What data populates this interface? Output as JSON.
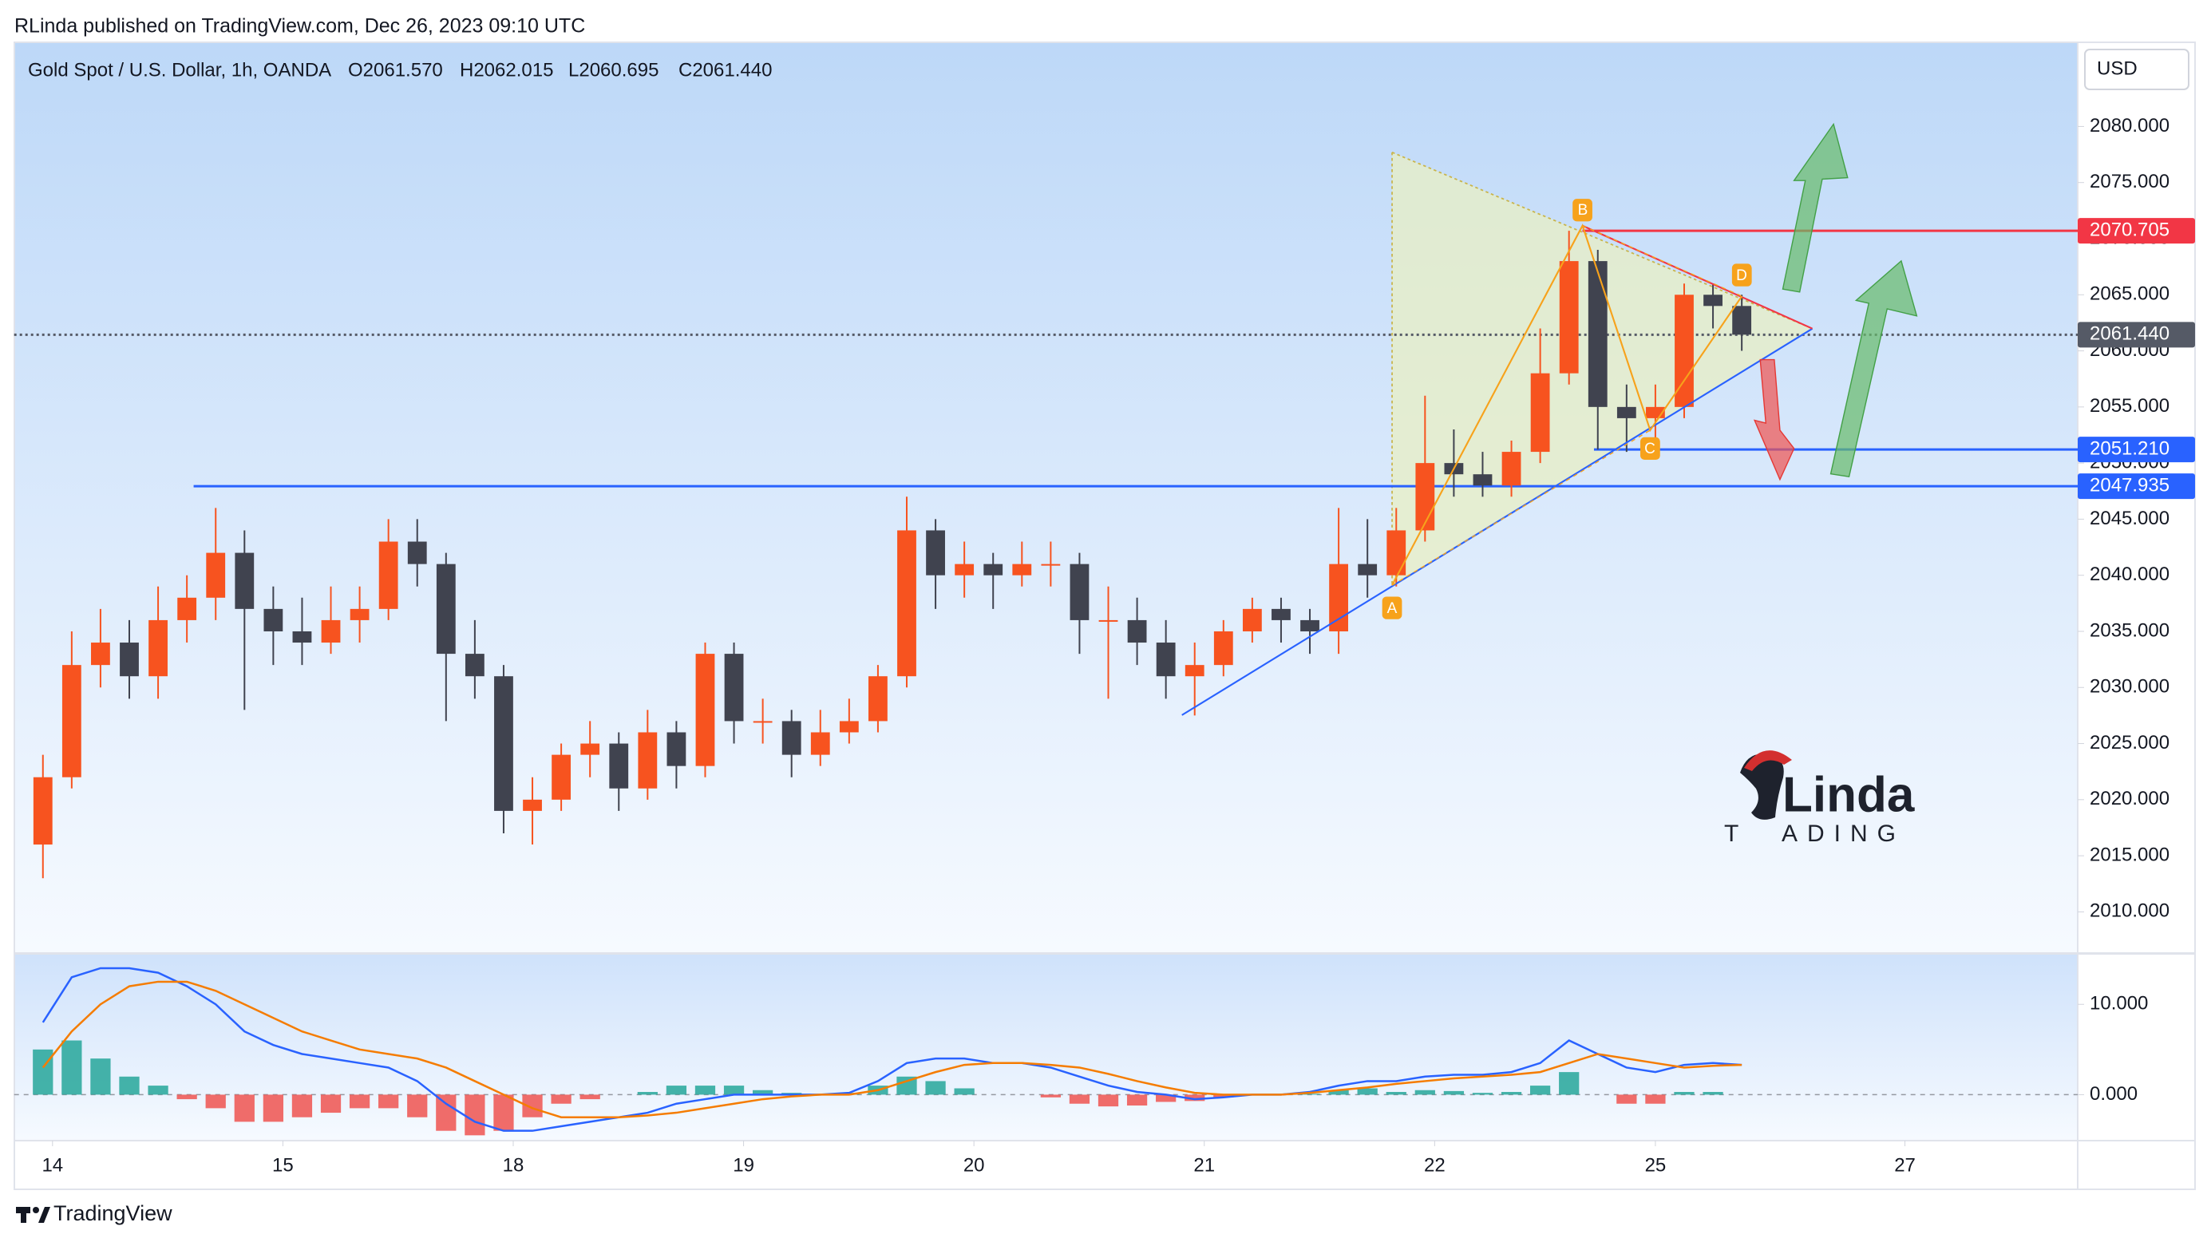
{
  "header": {
    "published": "RLinda published on TradingView.com, Dec 26, 2023 09:10 UTC",
    "symbol": "Gold Spot / U.S. Dollar, 1h, OANDA",
    "open": "O2061.570",
    "high": "H2062.015",
    "low": "L2060.695",
    "close": "C2061.440",
    "currency": "USD",
    "footer": "TradingView"
  },
  "logo": {
    "name": "Linda",
    "tag_start": "T",
    "tag_end": "ADING"
  },
  "annotations": {
    "points": [
      "A",
      "B",
      "C",
      "D"
    ]
  },
  "chart_data": [
    {
      "type": "candlestick",
      "up_color": "#f7531f",
      "down_color": "#40434f",
      "grid": false,
      "xlim": [
        -3,
        212
      ],
      "ylim": [
        2006.4,
        2087.5
      ],
      "xticks": [
        {
          "value": 1,
          "label": "14"
        },
        {
          "value": 25,
          "label": "15"
        },
        {
          "value": 49,
          "label": "18"
        },
        {
          "value": 73,
          "label": "19"
        },
        {
          "value": 97,
          "label": "20"
        },
        {
          "value": 121,
          "label": "21"
        },
        {
          "value": 145,
          "label": "22"
        },
        {
          "value": 168,
          "label": "25"
        },
        {
          "value": 194,
          "label": "27"
        }
      ],
      "yticks": [
        {
          "value": 2010,
          "label": "2010.000"
        },
        {
          "value": 2015,
          "label": "2015.000"
        },
        {
          "value": 2020,
          "label": "2020.000"
        },
        {
          "value": 2025,
          "label": "2025.000"
        },
        {
          "value": 2030,
          "label": "2030.000"
        },
        {
          "value": 2035,
          "label": "2035.000"
        },
        {
          "value": 2040,
          "label": "2040.000"
        },
        {
          "value": 2045,
          "label": "2045.000"
        },
        {
          "value": 2050,
          "label": "2050.000"
        },
        {
          "value": 2055,
          "label": "2055.000"
        },
        {
          "value": 2060,
          "label": "2060.000"
        },
        {
          "value": 2065,
          "label": "2065.000"
        },
        {
          "value": 2070,
          "label": "2070.000"
        },
        {
          "value": 2075,
          "label": "2075.000"
        },
        {
          "value": 2080,
          "label": "2080.000"
        }
      ],
      "x": [
        0,
        3,
        6,
        9,
        12,
        15,
        18,
        21,
        24,
        27,
        30,
        33,
        36,
        39,
        42,
        45,
        48,
        51,
        54,
        57,
        60,
        63,
        66,
        69,
        72,
        75,
        78,
        81,
        84,
        87,
        90,
        93,
        96,
        99,
        102,
        105,
        108,
        111,
        114,
        117,
        120,
        123,
        126,
        129,
        132,
        135,
        138,
        141,
        144,
        147,
        150,
        153,
        156,
        159,
        162,
        165,
        168,
        171,
        174,
        177
      ],
      "open": [
        2016,
        2022,
        2032,
        2034,
        2031,
        2036,
        2038,
        2042,
        2037,
        2035,
        2034,
        2036,
        2037,
        2043,
        2041,
        2033,
        2031,
        2019,
        2020,
        2024,
        2025,
        2021,
        2026,
        2023,
        2033,
        2027,
        2027,
        2024,
        2026,
        2027,
        2031,
        2044,
        2040,
        2041,
        2040,
        2041,
        2041,
        2036,
        2036,
        2034,
        2031,
        2032,
        2035,
        2037,
        2036,
        2035,
        2041,
        2040,
        2044,
        2050,
        2049,
        2048,
        2051,
        2058,
        2068,
        2055,
        2054,
        2055,
        2065,
        2064
      ],
      "high": [
        2024,
        2035,
        2037,
        2036,
        2039,
        2040,
        2046,
        2044,
        2039,
        2038,
        2039,
        2039,
        2045,
        2045,
        2042,
        2036,
        2032,
        2022,
        2025,
        2027,
        2026,
        2028,
        2027,
        2034,
        2034,
        2029,
        2028,
        2028,
        2029,
        2032,
        2047,
        2045,
        2043,
        2042,
        2043,
        2043,
        2042,
        2039,
        2038,
        2036,
        2034,
        2036,
        2038,
        2038,
        2037,
        2046,
        2045,
        2046,
        2056,
        2053,
        2051,
        2052,
        2062,
        2070.7,
        2069,
        2057,
        2057,
        2066,
        2066,
        2065
      ],
      "low": [
        2013,
        2021,
        2030,
        2029,
        2029,
        2034,
        2036,
        2028,
        2032,
        2032,
        2033,
        2034,
        2036,
        2039,
        2027,
        2029,
        2017,
        2016,
        2019,
        2022,
        2019,
        2020,
        2021,
        2022,
        2025,
        2025,
        2022,
        2023,
        2025,
        2026,
        2030,
        2037,
        2038,
        2037,
        2039,
        2039,
        2033,
        2029,
        2032,
        2029,
        2027.5,
        2031,
        2034,
        2034,
        2033,
        2033,
        2038,
        2039,
        2043,
        2047,
        2047,
        2047,
        2050,
        2057,
        2051.2,
        2051,
        2052,
        2054,
        2062,
        2060
      ],
      "close": [
        2022,
        2032,
        2034,
        2031,
        2036,
        2038,
        2042,
        2037,
        2035,
        2034,
        2036,
        2037,
        2043,
        2041,
        2033,
        2031,
        2019,
        2020,
        2024,
        2025,
        2021,
        2026,
        2023,
        2033,
        2027,
        2027,
        2024,
        2026,
        2027,
        2031,
        2044,
        2040,
        2041,
        2040,
        2041,
        2041,
        2036,
        2036,
        2034,
        2031,
        2032,
        2035,
        2037,
        2036,
        2035,
        2041,
        2040,
        2044,
        2050,
        2049,
        2048,
        2051,
        2058,
        2068,
        2055,
        2054,
        2055,
        2065,
        2064,
        2061.44
      ],
      "levels": [
        {
          "value": 2070.705,
          "label": "2070.705",
          "color": "#f23645",
          "start": 160.4
        },
        {
          "value": 2061.44,
          "label": "2061.440",
          "color": "#555a66",
          "start": -3,
          "dashed": true
        },
        {
          "value": 2051.21,
          "label": "2051.210",
          "color": "#2962ff",
          "start": 161.6
        },
        {
          "value": 2047.935,
          "label": "2047.935",
          "color": "#2962ff",
          "start": 15.7
        }
      ]
    },
    {
      "type": "macd",
      "ylim": [
        -5,
        15.5
      ],
      "yticks": [
        {
          "value": 0,
          "label": "0.000"
        },
        {
          "value": 10,
          "label": "10.000"
        }
      ],
      "series": [
        {
          "name": "MACD",
          "color": "#2962ff",
          "values": [
            8,
            13,
            14,
            14,
            13.5,
            12,
            10,
            7,
            5.5,
            4.5,
            4,
            3.5,
            3,
            1.5,
            -1,
            -3,
            -4,
            -4,
            -3.5,
            -3,
            -2.5,
            -2,
            -1,
            -0.5,
            0,
            0,
            0,
            0,
            0.2,
            1.5,
            3.5,
            4,
            4,
            3.5,
            3.5,
            3,
            2,
            1,
            0.3,
            0,
            -0.5,
            -0.3,
            0,
            0,
            0.3,
            1,
            1.5,
            1.5,
            2,
            2.2,
            2.2,
            2.5,
            3.5,
            6,
            4.5,
            3,
            2.5,
            3.3,
            3.5,
            3.3
          ]
        },
        {
          "name": "Signal",
          "color": "#f57c00",
          "values": [
            3,
            7,
            10,
            12,
            12.5,
            12.5,
            11.5,
            10,
            8.5,
            7,
            6,
            5,
            4.5,
            4,
            3,
            1.5,
            0,
            -1.5,
            -2.5,
            -2.5,
            -2.5,
            -2.3,
            -2,
            -1.5,
            -1,
            -0.5,
            -0.2,
            0,
            0,
            0.5,
            1.5,
            2.5,
            3.3,
            3.5,
            3.5,
            3.3,
            3,
            2.3,
            1.5,
            0.8,
            0.2,
            0,
            0,
            0,
            0.2,
            0.5,
            0.8,
            1.2,
            1.5,
            1.8,
            2,
            2.2,
            2.5,
            3.5,
            4.5,
            4,
            3.5,
            3,
            3.2,
            3.3
          ]
        }
      ],
      "histogram": {
        "pos_color": "#26a69a",
        "neg_color": "#ef5350",
        "values": [
          5,
          6,
          4,
          2,
          1,
          -0.5,
          -1.5,
          -3,
          -3,
          -2.5,
          -2,
          -1.5,
          -1.5,
          -2.5,
          -4,
          -4.5,
          -4,
          -2.5,
          -1,
          -0.5,
          0,
          0.3,
          1,
          1,
          1,
          0.5,
          0.2,
          0,
          0.2,
          1,
          2,
          1.5,
          0.7,
          0,
          0,
          -0.3,
          -1,
          -1.3,
          -1.2,
          -0.8,
          -0.7,
          -0.3,
          0,
          0,
          0.1,
          0.5,
          0.7,
          0.3,
          0.5,
          0.4,
          0.2,
          0.3,
          1,
          2.5,
          0,
          -1,
          -1,
          0.3,
          0.3,
          0
        ]
      }
    }
  ]
}
